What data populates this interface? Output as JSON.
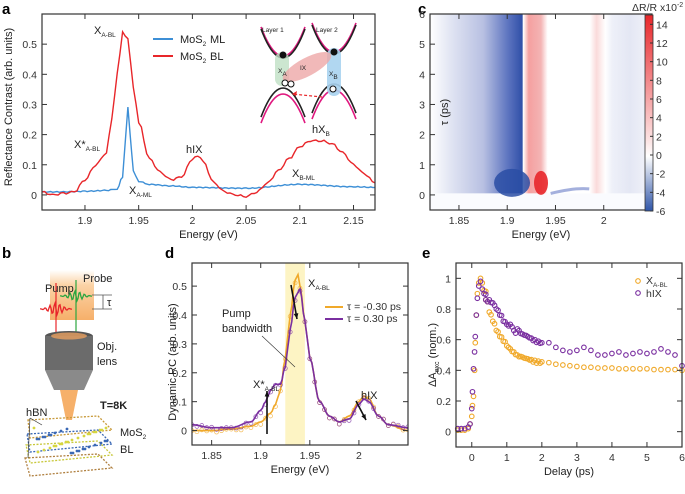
{
  "panels": {
    "a": "a",
    "b": "b",
    "c": "c",
    "d": "d",
    "e": "e"
  },
  "colors": {
    "ml": "#3d8fd6",
    "bl": "#e8262a",
    "neg": "#2f55a8",
    "pos": "#e8262a",
    "tau_neg": "#f0a92a",
    "tau_pos": "#7a2fa0",
    "pump_band": "#fdf4c4"
  },
  "chart_data": [
    {
      "id": "a",
      "type": "line",
      "title": "",
      "xlabel": "Energy (eV)",
      "ylabel": "Reflectance Contrast (arb. units)",
      "xlim": [
        1.86,
        2.17
      ],
      "ylim": [
        -0.05,
        0.6
      ],
      "xticks": [
        1.9,
        1.95,
        2,
        2.05,
        2.1,
        2.15
      ],
      "xtick_labels": [
        "1.9",
        "1.95",
        "2",
        "2.05",
        "2.1",
        "2.15"
      ],
      "yticks": [
        0,
        0.1,
        0.2,
        0.3,
        0.4,
        0.5
      ],
      "ytick_labels": [
        "0",
        "0.1",
        "0.2",
        "0.3",
        "0.4",
        "0.5"
      ],
      "legend": {
        "position": "top-right",
        "entries": [
          {
            "label": "MoS",
            "sub": "2",
            "suffix": " ML"
          },
          {
            "label": "MoS",
            "sub": "2",
            "suffix": " BL"
          }
        ]
      },
      "series": [
        {
          "name": "MoS2 ML",
          "x": [
            1.86,
            1.88,
            1.9,
            1.92,
            1.93,
            1.935,
            1.938,
            1.94,
            1.942,
            1.945,
            1.95,
            1.96,
            1.98,
            2.0,
            2.05,
            2.1,
            2.15,
            2.17
          ],
          "y": [
            0.01,
            0.01,
            0.012,
            0.015,
            0.02,
            0.06,
            0.2,
            0.29,
            0.2,
            0.08,
            0.045,
            0.035,
            0.03,
            0.025,
            0.022,
            0.035,
            0.027,
            0.025
          ]
        },
        {
          "name": "MoS2 BL",
          "x": [
            1.86,
            1.87,
            1.88,
            1.89,
            1.9,
            1.91,
            1.92,
            1.925,
            1.93,
            1.935,
            1.94,
            1.945,
            1.95,
            1.96,
            1.97,
            1.98,
            1.99,
            2.0,
            2.005,
            2.01,
            2.02,
            2.03,
            2.04,
            2.05,
            2.06,
            2.07,
            2.08,
            2.09,
            2.1,
            2.11,
            2.12,
            2.13,
            2.14,
            2.15,
            2.16,
            2.17
          ],
          "y": [
            0.01,
            0.0,
            0.005,
            0.01,
            0.05,
            0.1,
            0.14,
            0.25,
            0.4,
            0.54,
            0.52,
            0.36,
            0.24,
            0.12,
            0.075,
            0.05,
            0.06,
            0.12,
            0.13,
            0.11,
            0.04,
            0.01,
            0.0,
            -0.005,
            0.01,
            0.04,
            0.08,
            0.12,
            0.16,
            0.18,
            0.18,
            0.17,
            0.14,
            0.1,
            0.07,
            0.04
          ]
        }
      ],
      "annotations": [
        {
          "text": "X",
          "sub": "A-BL"
        },
        {
          "text": "X*",
          "sub": "A-BL"
        },
        {
          "text": "X",
          "sub": "A-ML"
        },
        {
          "text": "hIX",
          "sub": ""
        },
        {
          "text": "hX",
          "sub": "B"
        },
        {
          "text": "X",
          "sub": "B-ML"
        }
      ],
      "inset": {
        "layer1": "Layer 1",
        "layer2": "Layer 2",
        "xa": "X",
        "xa_sub": "A",
        "ix": "IX",
        "xb": "X",
        "xb_sub": "B"
      }
    },
    {
      "id": "c",
      "type": "heatmap",
      "xlabel": "Energy (eV)",
      "ylabel": "τ (ps)",
      "xlim": [
        1.82,
        2.05
      ],
      "ylim": [
        -0.5,
        6
      ],
      "xticks": [
        1.85,
        1.9,
        1.95,
        2
      ],
      "xtick_labels": [
        "1.85",
        "1.9",
        "1.95",
        "2"
      ],
      "yticks": [
        0,
        1,
        2,
        3,
        4,
        5,
        6
      ],
      "ytick_labels": [
        "0",
        "1",
        "2",
        "3",
        "4",
        "5",
        "6"
      ],
      "colorbar": {
        "title": "ΔR/R x10",
        "title_exp": "-2",
        "range": [
          -6,
          15
        ],
        "ticks": [
          14,
          12,
          10,
          8,
          6,
          4,
          2,
          0,
          -2,
          -4,
          -6
        ],
        "tick_labels": [
          "14",
          "12",
          "10",
          "8",
          "6",
          "4",
          "2",
          "0",
          "-2",
          "-4",
          "-6"
        ]
      },
      "bands": [
        {
          "center": 1.9,
          "width": 0.05,
          "value": -4,
          "peak_value": -6
        },
        {
          "center": 1.935,
          "width": 0.025,
          "value": 7,
          "peak_value": 14
        },
        {
          "center": 1.995,
          "width": 0.02,
          "value": 2,
          "peak_value": 3
        },
        {
          "center": 2.025,
          "width": 0.03,
          "value": -1,
          "peak_value": -2
        }
      ]
    },
    {
      "id": "d",
      "type": "line",
      "xlabel": "Energy (eV)",
      "ylabel": "Dynamic RC (arb. units)",
      "xlim": [
        1.83,
        2.05
      ],
      "ylim": [
        -0.05,
        0.58
      ],
      "xticks": [
        1.85,
        1.9,
        1.95,
        2
      ],
      "xtick_labels": [
        "1.85",
        "1.9",
        "1.95",
        "2"
      ],
      "yticks": [
        0,
        0.1,
        0.2,
        0.3,
        0.4,
        0.5
      ],
      "ytick_labels": [
        "0",
        "0.1",
        "0.2",
        "0.3",
        "0.4",
        "0.5"
      ],
      "pump_band": [
        1.925,
        1.945
      ],
      "legend": {
        "position": "top-right",
        "entries": [
          {
            "label": "τ = -0.30 ps"
          },
          {
            "label": "τ = 0.30 ps"
          }
        ]
      },
      "series": [
        {
          "name": "τ = -0.30 ps",
          "x": [
            1.83,
            1.85,
            1.87,
            1.89,
            1.9,
            1.91,
            1.915,
            1.92,
            1.925,
            1.93,
            1.935,
            1.938,
            1.94,
            1.945,
            1.95,
            1.96,
            1.97,
            1.98,
            1.99,
            2.0,
            2.005,
            2.01,
            2.02,
            2.03,
            2.05
          ],
          "y": [
            0.0,
            0.0,
            0.005,
            0.015,
            0.03,
            0.06,
            0.09,
            0.14,
            0.25,
            0.4,
            0.52,
            0.54,
            0.5,
            0.38,
            0.25,
            0.1,
            0.05,
            0.03,
            0.05,
            0.1,
            0.12,
            0.11,
            0.05,
            0.02,
            0.0
          ]
        },
        {
          "name": "τ = 0.30 ps",
          "x": [
            1.83,
            1.85,
            1.87,
            1.89,
            1.9,
            1.905,
            1.91,
            1.915,
            1.92,
            1.925,
            1.93,
            1.935,
            1.94,
            1.945,
            1.95,
            1.96,
            1.97,
            1.98,
            1.99,
            2.0,
            2.005,
            2.01,
            2.02,
            2.03,
            2.05
          ],
          "y": [
            0.02,
            0.01,
            0.01,
            0.03,
            0.07,
            0.1,
            0.14,
            0.16,
            0.16,
            0.22,
            0.35,
            0.46,
            0.49,
            0.38,
            0.25,
            0.1,
            0.05,
            0.03,
            0.04,
            0.09,
            0.11,
            0.1,
            0.05,
            0.02,
            0.01
          ]
        }
      ],
      "annotations": [
        {
          "text": "X",
          "sub": "A-BL"
        },
        {
          "text": "X*",
          "sub": "A-BL"
        },
        {
          "text": "hIX",
          "sub": ""
        },
        {
          "text": "Pump",
          "sub": ""
        },
        {
          "text": "bandwidth",
          "sub": ""
        }
      ]
    },
    {
      "id": "e",
      "type": "scatter",
      "xlabel": "Delay (ps)",
      "ylabel": "ΔA",
      "ylabel_sub": "exc",
      "ylabel_suffix": " (norm.)",
      "xlim": [
        -0.45,
        6
      ],
      "ylim": [
        -0.1,
        1.1
      ],
      "xticks": [
        0,
        1,
        2,
        3,
        4,
        5,
        6
      ],
      "xtick_labels": [
        "0",
        "1",
        "2",
        "3",
        "4",
        "5",
        "6"
      ],
      "yticks": [
        0,
        0.2,
        0.4,
        0.6,
        0.8,
        1
      ],
      "ytick_labels": [
        "0",
        "0.2",
        "0.4",
        "0.6",
        "0.8",
        "1"
      ],
      "legend": {
        "position": "top-right",
        "entries": [
          {
            "label": "X",
            "sub": "A-BL"
          },
          {
            "label": "hIX",
            "sub": ""
          }
        ]
      },
      "series": [
        {
          "name": "X_A-BL",
          "x": [
            -0.4,
            -0.3,
            -0.2,
            -0.1,
            -0.05,
            0.0,
            0.02,
            0.05,
            0.08,
            0.1,
            0.13,
            0.16,
            0.2,
            0.25,
            0.3,
            0.35,
            0.4,
            0.5,
            0.6,
            0.7,
            0.8,
            0.9,
            1.0,
            1.1,
            1.2,
            1.3,
            1.4,
            1.5,
            1.6,
            1.7,
            1.8,
            1.9,
            2.0,
            2.2,
            2.4,
            2.6,
            2.8,
            3.0,
            3.2,
            3.4,
            3.6,
            3.8,
            4.0,
            4.2,
            4.4,
            4.6,
            4.8,
            5.0,
            5.2,
            5.4,
            5.6,
            5.8,
            6.0
          ],
          "y": [
            0.01,
            0.01,
            0.01,
            0.02,
            0.05,
            0.1,
            0.17,
            0.23,
            0.4,
            0.58,
            0.76,
            0.9,
            0.97,
            1.0,
            0.97,
            0.92,
            0.86,
            0.78,
            0.72,
            0.66,
            0.62,
            0.59,
            0.56,
            0.54,
            0.52,
            0.5,
            0.49,
            0.48,
            0.475,
            0.47,
            0.465,
            0.46,
            0.455,
            0.45,
            0.44,
            0.435,
            0.43,
            0.425,
            0.42,
            0.42,
            0.415,
            0.415,
            0.415,
            0.41,
            0.41,
            0.41,
            0.41,
            0.41,
            0.405,
            0.405,
            0.405,
            0.405,
            0.4
          ]
        },
        {
          "name": "hIX",
          "x": [
            -0.4,
            -0.3,
            -0.2,
            -0.1,
            -0.05,
            0.0,
            0.02,
            0.05,
            0.08,
            0.1,
            0.13,
            0.16,
            0.2,
            0.25,
            0.3,
            0.35,
            0.4,
            0.5,
            0.6,
            0.7,
            0.8,
            0.9,
            1.0,
            1.1,
            1.2,
            1.3,
            1.4,
            1.5,
            1.6,
            1.7,
            1.8,
            1.9,
            2.0,
            2.2,
            2.4,
            2.6,
            2.8,
            3.0,
            3.2,
            3.4,
            3.6,
            3.8,
            4.0,
            4.2,
            4.4,
            4.6,
            4.8,
            5.0,
            5.2,
            5.4,
            5.6,
            5.8,
            6.0
          ],
          "y": [
            0.02,
            0.02,
            0.02,
            0.03,
            0.05,
            0.15,
            0.26,
            0.41,
            0.52,
            0.62,
            0.76,
            0.87,
            0.95,
            0.98,
            0.93,
            0.9,
            0.86,
            0.86,
            0.84,
            0.8,
            0.76,
            0.72,
            0.7,
            0.7,
            0.66,
            0.67,
            0.64,
            0.63,
            0.62,
            0.61,
            0.6,
            0.59,
            0.58,
            0.58,
            0.55,
            0.53,
            0.52,
            0.53,
            0.55,
            0.53,
            0.5,
            0.5,
            0.51,
            0.52,
            0.5,
            0.51,
            0.52,
            0.51,
            0.52,
            0.54,
            0.52,
            0.5,
            0.43
          ]
        }
      ]
    }
  ],
  "panel_b": {
    "pump": "Pump",
    "probe": "Probe",
    "tau": "τ",
    "lens1": "Obj.",
    "lens2": "lens",
    "hbn": "hBN",
    "temp": "T=8K",
    "sample1": "MoS",
    "sample1_sub": "2",
    "sample2": "BL"
  }
}
